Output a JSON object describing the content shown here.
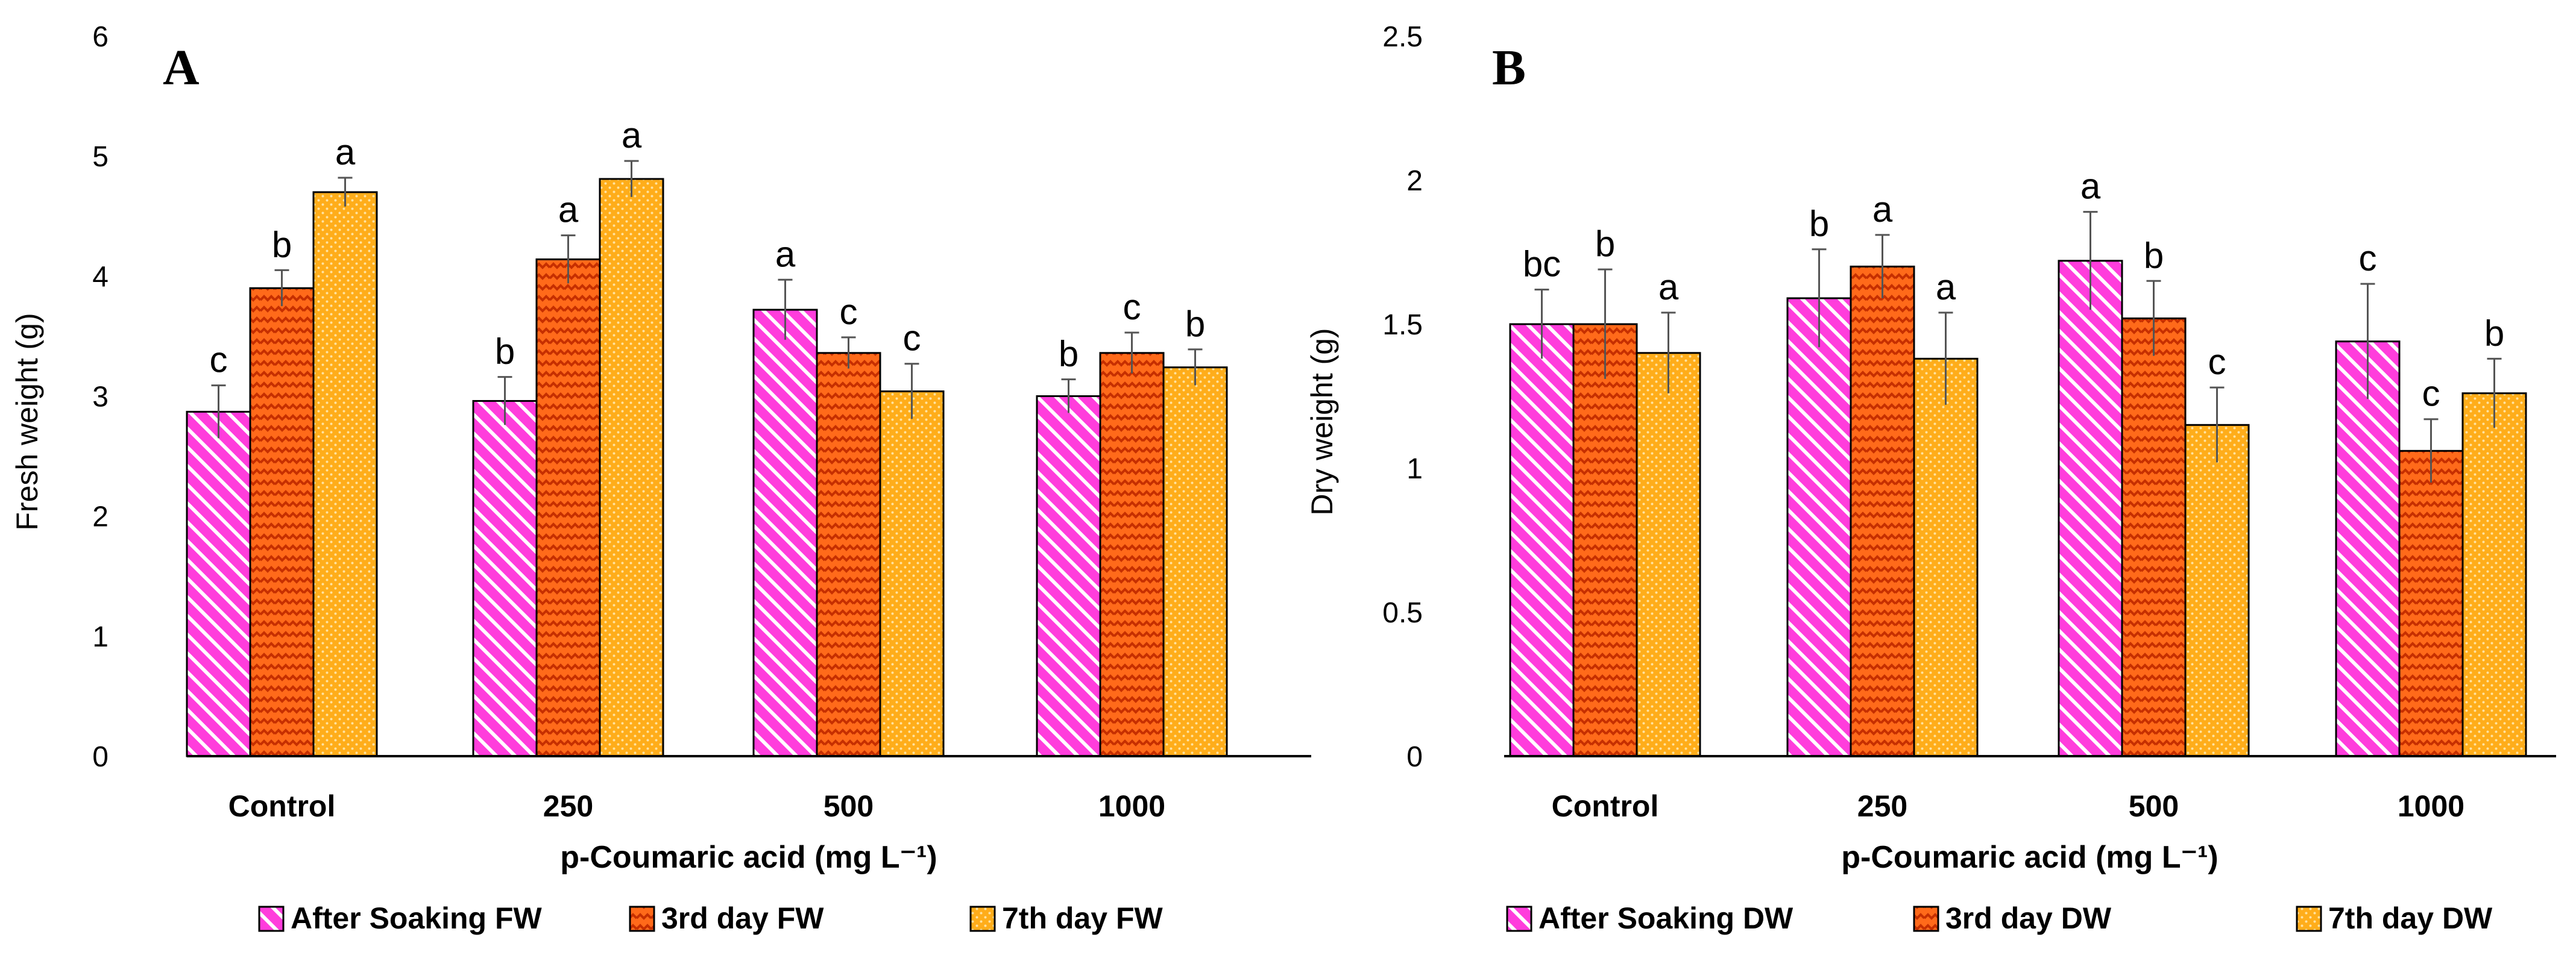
{
  "chart_data": [
    {
      "type": "bar",
      "panel": "A",
      "title": "",
      "xlabel": "p-Coumaric acid (mg L⁻¹)",
      "ylabel": "Fresh weight (g)",
      "ylim": [
        0,
        6
      ],
      "yticks": [
        "0",
        "1",
        "2",
        "3",
        "4",
        "5",
        "6"
      ],
      "yticks_values": [
        0,
        1,
        2,
        3,
        4,
        5,
        6
      ],
      "categories": [
        "Control",
        "250",
        "500",
        "1000"
      ],
      "series": [
        {
          "name": "After Soaking FW",
          "pattern": "diag",
          "color": "#ff3ddc",
          "values": [
            2.87,
            2.96,
            3.72,
            3.0
          ],
          "errors": [
            0.22,
            0.2,
            0.25,
            0.14
          ],
          "letters": [
            "c",
            "b",
            "a",
            "b"
          ]
        },
        {
          "name": "3rd day FW",
          "pattern": "zigzag",
          "color": "#ff6a1a",
          "values": [
            3.9,
            4.14,
            3.36,
            3.36
          ],
          "errors": [
            0.15,
            0.2,
            0.13,
            0.17
          ],
          "letters": [
            "b",
            "a",
            "c",
            "c"
          ]
        },
        {
          "name": "7th day FW",
          "pattern": "dots",
          "color": "#ffad1a",
          "values": [
            4.7,
            4.81,
            3.04,
            3.24
          ],
          "errors": [
            0.12,
            0.15,
            0.23,
            0.15
          ],
          "letters": [
            "a",
            "a",
            "c",
            "b"
          ]
        }
      ],
      "legend": "bottom"
    },
    {
      "type": "bar",
      "panel": "B",
      "title": "",
      "xlabel": "p-Coumaric acid (mg L⁻¹)",
      "ylabel": "Dry weight (g)",
      "ylim": [
        0,
        2.5
      ],
      "yticks": [
        "0",
        "0.5",
        "1",
        "1.5",
        "2",
        "2.5"
      ],
      "yticks_values": [
        0,
        0.5,
        1,
        1.5,
        2,
        2.5
      ],
      "categories": [
        "Control",
        "250",
        "500",
        "1000"
      ],
      "series": [
        {
          "name": "After Soaking DW",
          "pattern": "diag",
          "color": "#ff3ddc",
          "values": [
            1.5,
            1.59,
            1.72,
            1.44
          ],
          "errors": [
            0.12,
            0.17,
            0.17,
            0.2
          ],
          "letters": [
            "bc",
            "b",
            "a",
            "c"
          ]
        },
        {
          "name": "3rd day DW",
          "pattern": "zigzag",
          "color": "#ff6a1a",
          "values": [
            1.5,
            1.7,
            1.52,
            1.06
          ],
          "errors": [
            0.19,
            0.11,
            0.13,
            0.11
          ],
          "letters": [
            "b",
            "a",
            "b",
            "c"
          ]
        },
        {
          "name": "7th day DW",
          "pattern": "dots",
          "color": "#ffad1a",
          "values": [
            1.4,
            1.38,
            1.15,
            1.26
          ],
          "errors": [
            0.14,
            0.16,
            0.13,
            0.12
          ],
          "letters": [
            "a",
            "a",
            "c",
            "b"
          ]
        }
      ],
      "legend": "bottom"
    }
  ]
}
